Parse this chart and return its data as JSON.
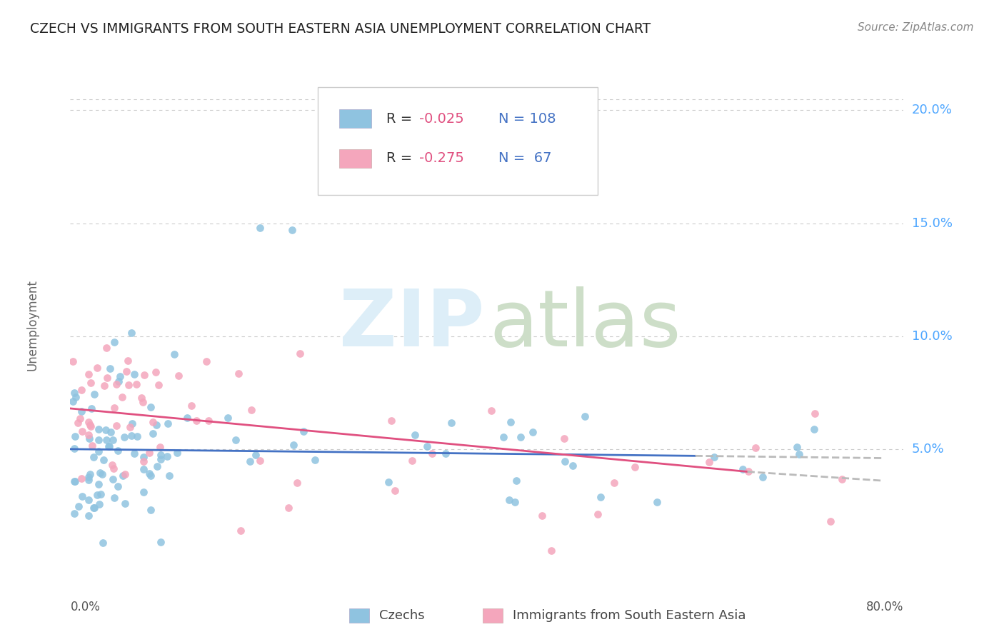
{
  "title": "CZECH VS IMMIGRANTS FROM SOUTH EASTERN ASIA UNEMPLOYMENT CORRELATION CHART",
  "source": "Source: ZipAtlas.com",
  "ylabel": "Unemployment",
  "y_ticks_right": [
    "5.0%",
    "10.0%",
    "15.0%",
    "20.0%"
  ],
  "y_tick_vals": [
    0.05,
    0.1,
    0.15,
    0.2
  ],
  "xlim": [
    0.0,
    0.8
  ],
  "ylim": [
    -0.005,
    0.215
  ],
  "series1_label": "Czechs",
  "series2_label": "Immigrants from South Eastern Asia",
  "color1": "#8fc3e0",
  "color2": "#f4a6bc",
  "trendline1_color": "#4472c4",
  "trendline2_color": "#e05080",
  "trendline_ext_color": "#bbbbbb",
  "background_color": "#ffffff",
  "grid_color": "#cccccc",
  "title_color": "#222222",
  "source_color": "#888888",
  "ylabel_color": "#666666",
  "axis_label_color": "#555555",
  "right_tick_color": "#4da6ff",
  "legend_text_color": "#333333",
  "legend_R_color": "#333333",
  "legend_neg_color": "#e05080",
  "legend_N_color": "#4472c4",
  "watermark_ZIP_color": "#ddeeff",
  "watermark_atlas_color": "#dde8cc"
}
